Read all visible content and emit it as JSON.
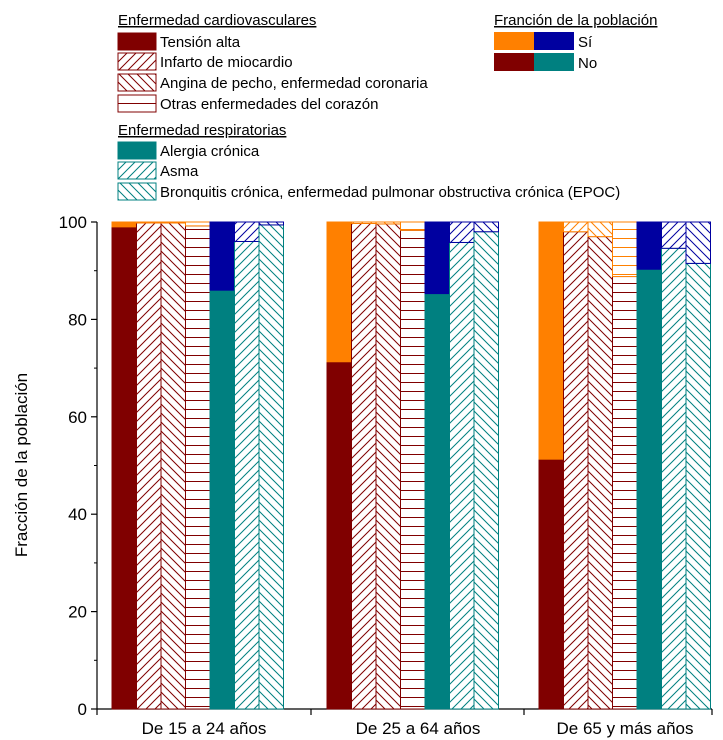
{
  "chart_data": {
    "type": "bar",
    "stacked": true,
    "ylabel": "Fracción de la población",
    "ylim": [
      0,
      100
    ],
    "yticks": [
      0,
      20,
      40,
      60,
      80,
      100
    ],
    "categories": [
      "De 15 a 24 años",
      "De 25 a 64 años",
      "De 65 y más años"
    ],
    "series": [
      {
        "name": "Tensión alta",
        "group": "cardio",
        "pattern": "solid",
        "no": [
          99,
          71.3,
          51.3
        ],
        "si": [
          1,
          28.7,
          48.7
        ]
      },
      {
        "name": "Infarto de miocardio",
        "group": "cardio",
        "pattern": "diag-up",
        "no": [
          99.8,
          99.7,
          98
        ],
        "si": [
          0.2,
          0.3,
          2
        ]
      },
      {
        "name": "Angina de pecho, enfermedad coronaria",
        "group": "cardio",
        "pattern": "diag-down",
        "no": [
          99.8,
          99.6,
          97
        ],
        "si": [
          0.2,
          0.4,
          3
        ]
      },
      {
        "name": "Otras enfermedades del corazón",
        "group": "cardio",
        "pattern": "horizontal",
        "no": [
          99.2,
          98.3,
          88.8
        ],
        "si": [
          0.8,
          1.7,
          11.2
        ]
      },
      {
        "name": "Alergia crónica",
        "group": "resp",
        "pattern": "solid",
        "no": [
          86,
          85.3,
          90.3
        ],
        "si": [
          14,
          14.7,
          9.7
        ]
      },
      {
        "name": "Asma",
        "group": "resp",
        "pattern": "diag-up",
        "no": [
          96,
          95.8,
          94.6
        ],
        "si": [
          4,
          4.2,
          5.4
        ]
      },
      {
        "name": "Bronquitis crónica, enfermedad pulmonar obstructiva crónica (EPOC)",
        "group": "resp",
        "pattern": "diag-down",
        "no": [
          99.4,
          98,
          91.5
        ],
        "si": [
          0.6,
          2,
          8.5
        ]
      }
    ],
    "legend": {
      "cardio_title": "Enfermedad cardiovasculares",
      "resp_title": "Enfermedad respiratorias",
      "fraction_title": "Franción de la población",
      "si_label": "Sí",
      "no_label": "No"
    },
    "colors": {
      "cardio_no": "#800000",
      "cardio_si": "#ff8000",
      "resp_no": "#008080",
      "resp_si": "#0000a0"
    }
  }
}
